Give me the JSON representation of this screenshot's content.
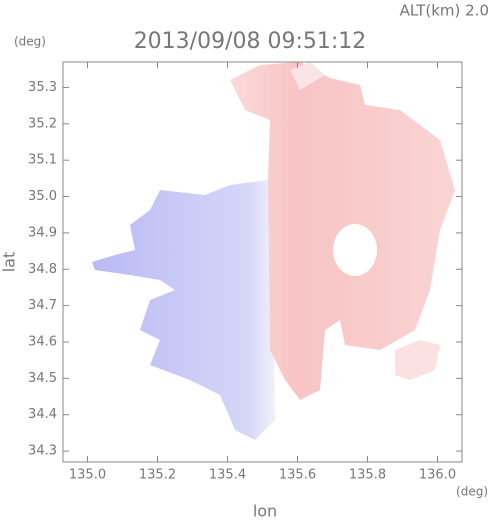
{
  "chart_data": {
    "type": "map",
    "title": "2013/09/08 09:51:12",
    "subtitle": "ALT(km) 2.0",
    "x_label": "lon",
    "y_label": "lat",
    "x_unit": "(deg)",
    "y_unit": "(deg)",
    "xlim": [
      134.93,
      136.07
    ],
    "ylim": [
      34.27,
      35.37
    ],
    "xticks": [
      {
        "value": 135,
        "label": "135.0"
      },
      135.2,
      135.4,
      135.6,
      135.8,
      {
        "value": 136,
        "label": "136.0"
      }
    ],
    "yticks": [
      34.3,
      34.4,
      34.5,
      34.6,
      34.7,
      34.8,
      34.9,
      {
        "value": 35,
        "label": "35.0"
      },
      35.1,
      35.2,
      35.3
    ]
  }
}
